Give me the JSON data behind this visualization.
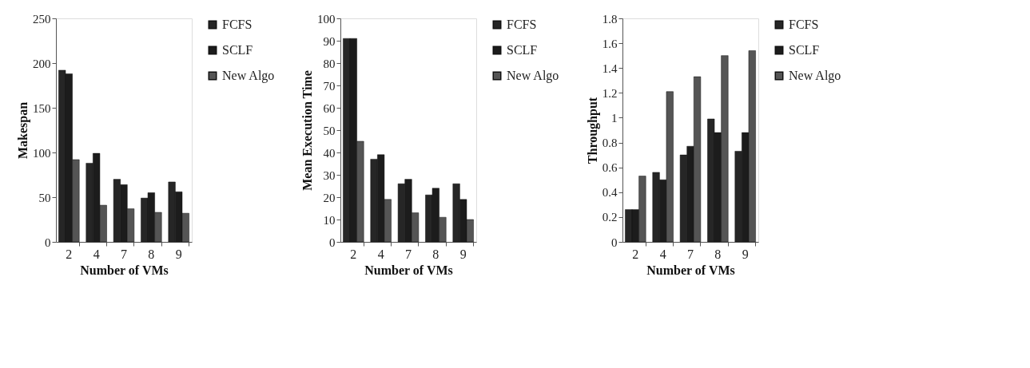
{
  "chart_data": [
    {
      "type": "bar",
      "xlabel": "Number of VMs",
      "ylabel": "Makespan",
      "categories": [
        "2",
        "4",
        "7",
        "8",
        "9"
      ],
      "ylim": [
        0,
        250
      ],
      "yticks": [
        0,
        50,
        100,
        150,
        200,
        250
      ],
      "legend": "right",
      "series": [
        {
          "name": "FCFS",
          "color": "#262626",
          "values": [
            192,
            88,
            70,
            49,
            67
          ]
        },
        {
          "name": "SCLF",
          "color": "#1c1c1c",
          "values": [
            188,
            99,
            64,
            55,
            56
          ]
        },
        {
          "name": "New Algo",
          "color": "#555555",
          "values": [
            92,
            41,
            37,
            33,
            32
          ]
        }
      ]
    },
    {
      "type": "bar",
      "xlabel": "Number of VMs",
      "ylabel": "Mean Execution Time",
      "categories": [
        "2",
        "4",
        "7",
        "8",
        "9"
      ],
      "ylim": [
        0,
        100
      ],
      "yticks": [
        0,
        10,
        20,
        30,
        40,
        50,
        60,
        70,
        80,
        90,
        100
      ],
      "legend": "right",
      "series": [
        {
          "name": "FCFS",
          "color": "#262626",
          "values": [
            91,
            37,
            26,
            21,
            26
          ]
        },
        {
          "name": "SCLF",
          "color": "#1c1c1c",
          "values": [
            91,
            39,
            28,
            24,
            19
          ]
        },
        {
          "name": "New Algo",
          "color": "#555555",
          "values": [
            45,
            19,
            13,
            11,
            10
          ]
        }
      ]
    },
    {
      "type": "bar",
      "xlabel": "Number of VMs",
      "ylabel": "Throughput",
      "categories": [
        "2",
        "4",
        "7",
        "8",
        "9"
      ],
      "ylim": [
        0,
        1.8
      ],
      "yticks": [
        0,
        0.2,
        0.4,
        0.6,
        0.8,
        1,
        1.2,
        1.4,
        1.6,
        1.8
      ],
      "legend": "right",
      "series": [
        {
          "name": "FCFS",
          "color": "#262626",
          "values": [
            0.26,
            0.56,
            0.7,
            0.99,
            0.73
          ]
        },
        {
          "name": "SCLF",
          "color": "#1c1c1c",
          "values": [
            0.26,
            0.5,
            0.77,
            0.88,
            0.88
          ]
        },
        {
          "name": "New Algo",
          "color": "#555555",
          "values": [
            0.53,
            1.21,
            1.33,
            1.5,
            1.54
          ]
        }
      ]
    }
  ]
}
